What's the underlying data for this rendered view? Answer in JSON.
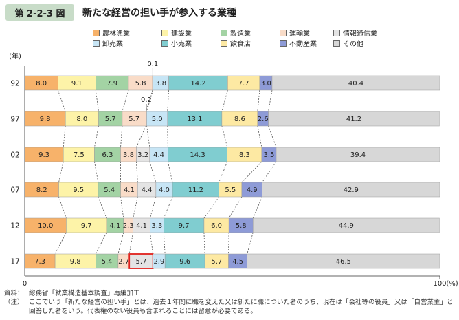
{
  "figure": {
    "label": "第 2-2-3 図",
    "title": "新たな経営の担い手が参入する業種"
  },
  "legend": [
    {
      "name": "農林漁業",
      "color": "#f7b26a"
    },
    {
      "name": "建設業",
      "color": "#fdf3a8"
    },
    {
      "name": "製造業",
      "color": "#a3d3a4"
    },
    {
      "name": "運輸業",
      "color": "#f9dcc8"
    },
    {
      "name": "情報通信業",
      "color": "#e4e4e4"
    },
    {
      "name": "卸売業",
      "color": "#c7e5f5"
    },
    {
      "name": "小売業",
      "color": "#80cdd0"
    },
    {
      "name": "飲食店",
      "color": "#fde9a3"
    },
    {
      "name": "不動産業",
      "color": "#8e9bd7"
    },
    {
      "name": "その他",
      "color": "#d7d7d7"
    }
  ],
  "chart_data": {
    "type": "bar",
    "orientation": "horizontal",
    "stacked": true,
    "y_unit_label": "(年)",
    "x_unit_label": "(%)",
    "x_tick_labels": [
      "0",
      "100"
    ],
    "xlim": [
      0,
      100
    ],
    "categories": [
      "92",
      "97",
      "02",
      "07",
      "12",
      "17"
    ],
    "series": [
      {
        "name": "農林漁業",
        "values": [
          8.0,
          9.8,
          9.3,
          8.2,
          10.0,
          7.3
        ]
      },
      {
        "name": "建設業",
        "values": [
          9.1,
          8.0,
          7.5,
          9.5,
          9.7,
          9.8
        ]
      },
      {
        "name": "製造業",
        "values": [
          7.9,
          5.7,
          6.3,
          5.4,
          4.1,
          5.4
        ]
      },
      {
        "name": "運輸業",
        "values": [
          5.8,
          5.7,
          3.8,
          4.1,
          2.3,
          2.7
        ]
      },
      {
        "name": "情報通信業",
        "values": [
          0.1,
          0.2,
          3.2,
          4.4,
          4.1,
          5.7
        ]
      },
      {
        "name": "卸売業",
        "values": [
          3.8,
          5.0,
          4.4,
          4.0,
          3.3,
          2.9
        ]
      },
      {
        "name": "小売業",
        "values": [
          14.2,
          13.1,
          14.3,
          11.2,
          9.7,
          9.6
        ]
      },
      {
        "name": "飲食店",
        "values": [
          7.7,
          8.6,
          8.3,
          5.5,
          6.0,
          5.7
        ]
      },
      {
        "name": "不動産業",
        "values": [
          3.0,
          2.6,
          3.5,
          4.9,
          5.8,
          4.5
        ]
      },
      {
        "name": "その他",
        "values": [
          40.4,
          41.2,
          39.4,
          42.9,
          44.9,
          46.5
        ]
      }
    ],
    "highlight": {
      "category": "17",
      "series": "情報通信業",
      "color": "#e0201c"
    },
    "external_labels": [
      {
        "category": "92",
        "series": "情報通信業",
        "text": "0.1"
      },
      {
        "category": "97",
        "series": "情報通信業",
        "text": "0.2"
      }
    ]
  },
  "notes": [
    {
      "tag": "資料：",
      "text": "総務省「就業構造基本調査」再編加工"
    },
    {
      "tag": "（注）",
      "text": "ここでいう「新たな経営の担い手」とは、過去１年間に職を変えた又は新たに職についた者のうち、現在は「会社等の役員」又は「自営業主」と回答した者をいう。代表権のない役員も含まれることには留意が必要である。"
    }
  ]
}
